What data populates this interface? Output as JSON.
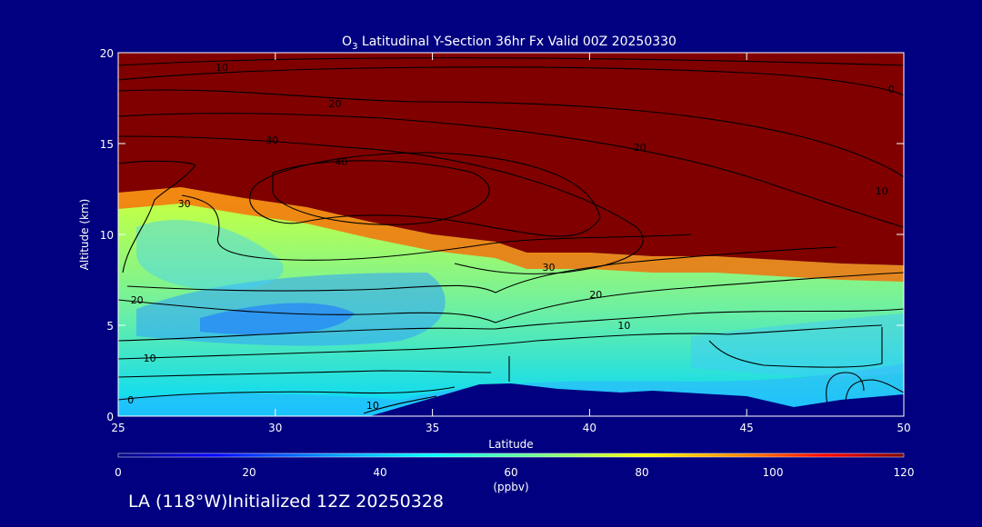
{
  "title_main": "O",
  "title_sub": "3",
  "title_rest": " Latitudinal Y-Section 36hr  Fx Valid 00Z 20250330",
  "footer": "LA (118°W)Initialized 12Z 20250328",
  "colorbar": {
    "ticks": [
      "0",
      "20",
      "40",
      "60",
      "80",
      "100",
      "120"
    ],
    "unit": "(ppbv)",
    "colors": [
      "#00007f",
      "#0000ff",
      "#00a0ff",
      "#00ffff",
      "#80ff80",
      "#ffff00",
      "#ff8000",
      "#ff0000",
      "#7f0000"
    ]
  },
  "chart_data": {
    "type": "heatmap",
    "title": "O3 Latitudinal Y-Section 36hr  Fx Valid 00Z 20250330",
    "xlabel": "Latitude",
    "ylabel": "Altitude (km)",
    "xlim": [
      25,
      50
    ],
    "ylim": [
      0,
      20
    ],
    "xticks": [
      "25",
      "30",
      "35",
      "40",
      "45",
      "50"
    ],
    "yticks": [
      "0",
      "5",
      "10",
      "15",
      "20"
    ],
    "value_range": [
      0,
      120
    ],
    "value_unit": "ppbv",
    "stratosphere_ozone_boundary_km": [
      [
        25,
        12.3
      ],
      [
        27,
        12.6
      ],
      [
        29,
        12.0
      ],
      [
        31,
        11.5
      ],
      [
        33,
        10.7
      ],
      [
        35,
        10.0
      ],
      [
        37,
        9.6
      ],
      [
        38,
        9.0
      ],
      [
        40,
        9.0
      ],
      [
        42,
        8.8
      ],
      [
        44,
        8.8
      ],
      [
        46,
        8.6
      ],
      [
        48,
        8.4
      ],
      [
        50,
        8.3
      ]
    ],
    "terrain_km": [
      [
        25,
        0
      ],
      [
        33,
        0
      ],
      [
        35,
        1.0
      ],
      [
        36.5,
        1.75
      ],
      [
        37.5,
        1.8
      ],
      [
        39,
        1.5
      ],
      [
        41,
        1.3
      ],
      [
        42,
        1.4
      ],
      [
        44,
        1.2
      ],
      [
        45,
        1.1
      ],
      [
        46.5,
        0.5
      ],
      [
        48,
        0.9
      ],
      [
        50,
        1.2
      ]
    ],
    "contour_labels": [
      {
        "text": "10",
        "lat": 28.3,
        "alt": 19.0
      },
      {
        "text": "20",
        "lat": 31.9,
        "alt": 17.0
      },
      {
        "text": "30",
        "lat": 29.9,
        "alt": 15.0
      },
      {
        "text": "40",
        "lat": 32.1,
        "alt": 13.8
      },
      {
        "text": "20",
        "lat": 41.6,
        "alt": 14.6
      },
      {
        "text": "0",
        "lat": 49.6,
        "alt": 17.8
      },
      {
        "text": "10",
        "lat": 49.3,
        "alt": 12.2
      },
      {
        "text": "30",
        "lat": 27.1,
        "alt": 11.5
      },
      {
        "text": "30",
        "lat": 38.7,
        "alt": 8.0
      },
      {
        "text": "20",
        "lat": 40.2,
        "alt": 6.5
      },
      {
        "text": "10",
        "lat": 41.1,
        "alt": 4.8
      },
      {
        "text": "20",
        "lat": 25.6,
        "alt": 6.2
      },
      {
        "text": "10",
        "lat": 26.0,
        "alt": 3.0
      },
      {
        "text": "0",
        "lat": 25.4,
        "alt": 0.7
      },
      {
        "text": "10",
        "lat": 33.1,
        "alt": 0.4
      }
    ]
  }
}
